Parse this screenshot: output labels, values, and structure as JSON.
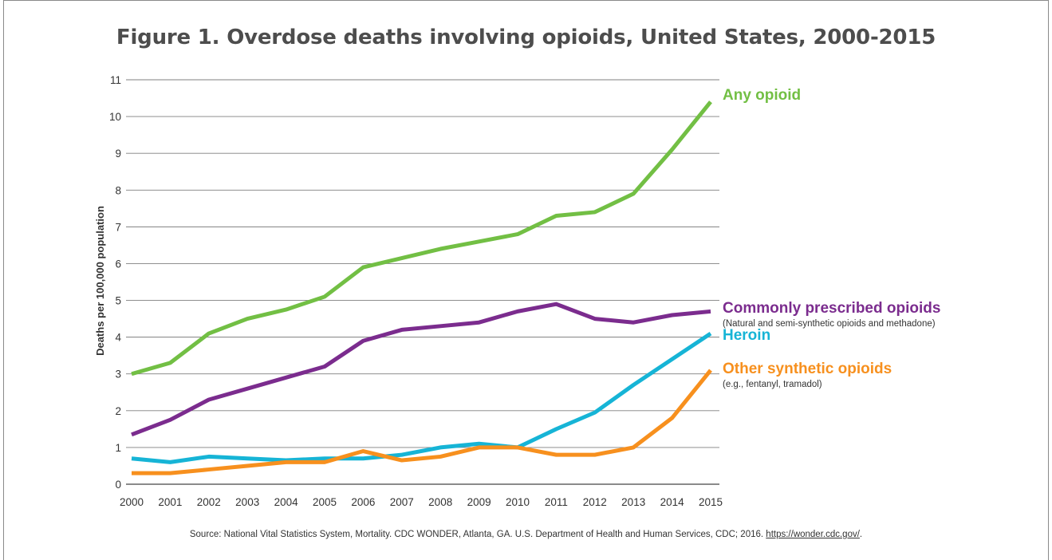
{
  "title": "Figure 1. Overdose deaths involving opioids, United States, 2000-2015",
  "source": {
    "text": "Source: National Vital Statistics System, Mortality. CDC WONDER, Atlanta, GA. U.S. Department of Health and Human Services, CDC; 2016. ",
    "link": "https://wonder.cdc.gov/",
    "suffix": "."
  },
  "chart_data": {
    "type": "line",
    "title": "Figure 1. Overdose deaths involving opioids, United States, 2000-2015",
    "xlabel": "",
    "ylabel": "Deaths per 100,000 population",
    "x": [
      2000,
      2001,
      2002,
      2003,
      2004,
      2005,
      2006,
      2007,
      2008,
      2009,
      2010,
      2011,
      2012,
      2013,
      2014,
      2015
    ],
    "ylim": [
      0,
      11
    ],
    "yticks": [
      0,
      1,
      2,
      3,
      4,
      5,
      6,
      7,
      8,
      9,
      10,
      11
    ],
    "grid": "horizontal",
    "series": [
      {
        "name": "Any opioid",
        "subtitle": "",
        "color": "#72bf44",
        "values": [
          3.0,
          3.3,
          4.1,
          4.5,
          4.75,
          5.1,
          5.9,
          6.15,
          6.4,
          6.6,
          6.8,
          7.3,
          7.4,
          7.9,
          9.1,
          10.4
        ]
      },
      {
        "name": "Commonly prescribed opioids",
        "subtitle": "(Natural and semi-synthetic opioids and methadone)",
        "color": "#7b2c8e",
        "values": [
          1.35,
          1.75,
          2.3,
          2.6,
          2.9,
          3.2,
          3.9,
          4.2,
          4.3,
          4.4,
          4.7,
          4.9,
          4.5,
          4.4,
          4.6,
          4.7
        ]
      },
      {
        "name": "Heroin",
        "subtitle": "",
        "color": "#16b4d6",
        "values": [
          0.7,
          0.6,
          0.75,
          0.7,
          0.65,
          0.7,
          0.7,
          0.8,
          1.0,
          1.1,
          1.0,
          1.5,
          1.95,
          2.7,
          3.4,
          4.1
        ]
      },
      {
        "name": "Other synthetic opioids",
        "subtitle": "(e.g., fentanyl, tramadol)",
        "color": "#f7901e",
        "values": [
          0.3,
          0.3,
          0.4,
          0.5,
          0.6,
          0.6,
          0.9,
          0.65,
          0.75,
          1.0,
          1.0,
          0.8,
          0.8,
          1.0,
          1.8,
          3.1
        ]
      }
    ]
  }
}
